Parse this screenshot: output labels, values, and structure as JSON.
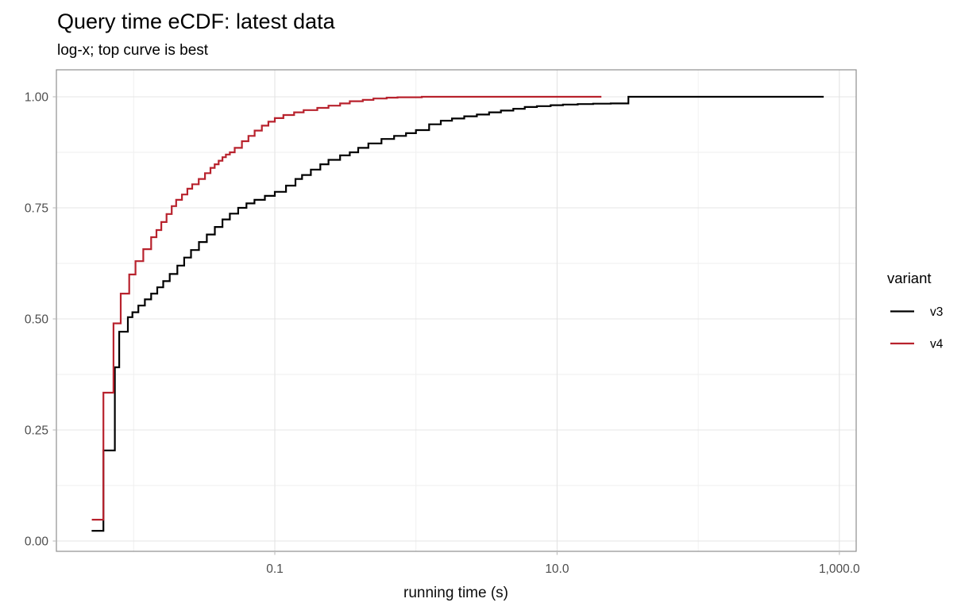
{
  "title": "Query time eCDF: latest data",
  "subtitle": "log-x; top curve is best",
  "axes": {
    "x": {
      "label": "running time (s)",
      "scale": "log10",
      "major_ticks": [
        {
          "value": 0.1,
          "label": "0.1"
        },
        {
          "value": 10,
          "label": "10.0"
        },
        {
          "value": 1000,
          "label": "1,000.0"
        }
      ],
      "minor_ticks": [
        0.01,
        1,
        100
      ],
      "range_approx": [
        0.003,
        1300
      ]
    },
    "y": {
      "label": "",
      "major_ticks": [
        {
          "value": 0.0,
          "label": "0.00"
        },
        {
          "value": 0.25,
          "label": "0.25"
        },
        {
          "value": 0.5,
          "label": "0.50"
        },
        {
          "value": 0.75,
          "label": "0.75"
        },
        {
          "value": 1.0,
          "label": "1.00"
        }
      ],
      "minor_ticks": [
        0.125,
        0.375,
        0.625,
        0.875
      ],
      "range": [
        0,
        1
      ]
    }
  },
  "legend": {
    "title": "variant",
    "items": [
      {
        "label": "v3",
        "color": "#000000"
      },
      {
        "label": "v4",
        "color": "#b8222d"
      }
    ]
  },
  "colors": {
    "background": "#ffffff",
    "panel_border": "#8f8f8f",
    "grid_major": "#e4e4e4",
    "grid_minor": "#efefef",
    "tick_mark": "#c2c2c2",
    "axis_text": "#4d4d4d",
    "v3": "#000000",
    "v4": "#b8222d"
  },
  "chart_data": {
    "type": "line",
    "subtype": "ecdf-step",
    "xlabel": "running time (s)",
    "ylabel": "",
    "x_scale": "log10",
    "ylim": [
      0,
      1
    ],
    "grid": true,
    "legend_position": "right",
    "series": [
      {
        "name": "v3",
        "color": "#000000",
        "end": 775,
        "points": [
          [
            0.00504,
            0.023
          ],
          [
            0.0061,
            0.204
          ],
          [
            0.00736,
            0.391
          ],
          [
            0.0079,
            0.471
          ],
          [
            0.0091,
            0.504
          ],
          [
            0.0098,
            0.515
          ],
          [
            0.0108,
            0.53
          ],
          [
            0.012,
            0.544
          ],
          [
            0.0133,
            0.557
          ],
          [
            0.0147,
            0.571
          ],
          [
            0.0162,
            0.585
          ],
          [
            0.018,
            0.601
          ],
          [
            0.0204,
            0.62
          ],
          [
            0.0228,
            0.638
          ],
          [
            0.0255,
            0.655
          ],
          [
            0.029,
            0.673
          ],
          [
            0.033,
            0.69
          ],
          [
            0.0376,
            0.707
          ],
          [
            0.0426,
            0.724
          ],
          [
            0.048,
            0.737
          ],
          [
            0.055,
            0.75
          ],
          [
            0.063,
            0.76
          ],
          [
            0.0718,
            0.768
          ],
          [
            0.085,
            0.777
          ],
          [
            0.1,
            0.786
          ],
          [
            0.12,
            0.8
          ],
          [
            0.14,
            0.815
          ],
          [
            0.156,
            0.824
          ],
          [
            0.18,
            0.836
          ],
          [
            0.21,
            0.848
          ],
          [
            0.24,
            0.858
          ],
          [
            0.29,
            0.868
          ],
          [
            0.34,
            0.875
          ],
          [
            0.39,
            0.885
          ],
          [
            0.46,
            0.895
          ],
          [
            0.57,
            0.905
          ],
          [
            0.7,
            0.912
          ],
          [
            0.85,
            0.918
          ],
          [
            1.0,
            0.925
          ],
          [
            1.24,
            0.938
          ],
          [
            1.5,
            0.946
          ],
          [
            1.8,
            0.951
          ],
          [
            2.2,
            0.956
          ],
          [
            2.7,
            0.96
          ],
          [
            3.3,
            0.965
          ],
          [
            4.0,
            0.969
          ],
          [
            4.9,
            0.973
          ],
          [
            5.9,
            0.977
          ],
          [
            7.2,
            0.979
          ],
          [
            9.0,
            0.981
          ],
          [
            11.0,
            0.9825
          ],
          [
            14.0,
            0.9835
          ],
          [
            18.0,
            0.9845
          ],
          [
            24.0,
            0.985
          ],
          [
            32.0,
            1.0
          ]
        ]
      },
      {
        "name": "v4",
        "color": "#b8222d",
        "end": 20.6,
        "points": [
          [
            0.00505,
            0.048
          ],
          [
            0.0061,
            0.334
          ],
          [
            0.0072,
            0.49
          ],
          [
            0.0081,
            0.557
          ],
          [
            0.0093,
            0.6
          ],
          [
            0.0103,
            0.63
          ],
          [
            0.0117,
            0.657
          ],
          [
            0.0133,
            0.684
          ],
          [
            0.0145,
            0.7
          ],
          [
            0.0157,
            0.718
          ],
          [
            0.0171,
            0.736
          ],
          [
            0.0186,
            0.754
          ],
          [
            0.02,
            0.768
          ],
          [
            0.022,
            0.78
          ],
          [
            0.024,
            0.793
          ],
          [
            0.026,
            0.803
          ],
          [
            0.0289,
            0.815
          ],
          [
            0.032,
            0.828
          ],
          [
            0.035,
            0.84
          ],
          [
            0.0375,
            0.848
          ],
          [
            0.04,
            0.856
          ],
          [
            0.0426,
            0.864
          ],
          [
            0.045,
            0.87
          ],
          [
            0.048,
            0.875
          ],
          [
            0.052,
            0.885
          ],
          [
            0.0585,
            0.9
          ],
          [
            0.065,
            0.912
          ],
          [
            0.072,
            0.924
          ],
          [
            0.081,
            0.935
          ],
          [
            0.09,
            0.944
          ],
          [
            0.1,
            0.952
          ],
          [
            0.115,
            0.959
          ],
          [
            0.137,
            0.965
          ],
          [
            0.16,
            0.97
          ],
          [
            0.2,
            0.975
          ],
          [
            0.24,
            0.98
          ],
          [
            0.29,
            0.985
          ],
          [
            0.34,
            0.99
          ],
          [
            0.42,
            0.993
          ],
          [
            0.5,
            0.996
          ],
          [
            0.62,
            0.998
          ],
          [
            0.74,
            0.999
          ],
          [
            1.1,
            1.0
          ]
        ]
      }
    ]
  }
}
